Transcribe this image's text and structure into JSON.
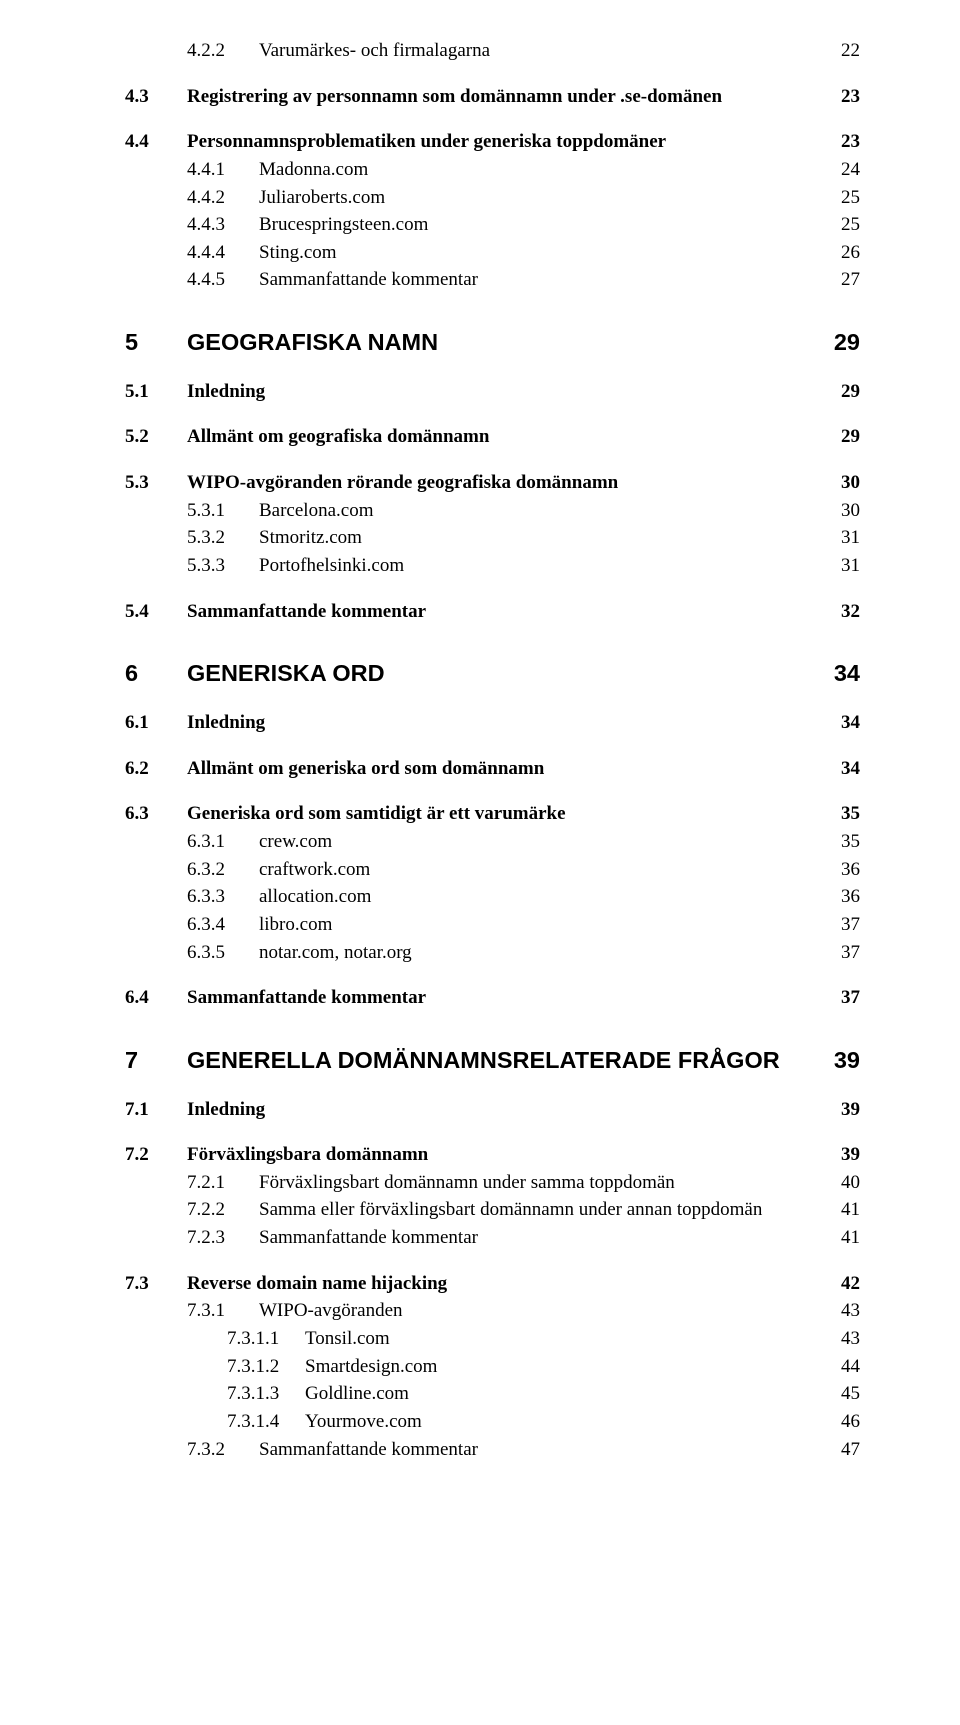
{
  "toc": [
    {
      "n": "4.2.2",
      "t": "Varumärkes- och firmalagarna",
      "p": "22",
      "lvl": 3,
      "cls": "first-block"
    },
    {
      "n": "4.3",
      "t": "Registrering av personnamn som domännamn under .se-domänen",
      "p": "23",
      "lvl": 2,
      "cls": "subheading"
    },
    {
      "n": "4.4",
      "t": "Personnamnsproblematiken under generiska toppdomäner",
      "p": "23",
      "lvl": 2,
      "cls": "subheading"
    },
    {
      "n": "4.4.1",
      "t": "Madonna.com",
      "p": "24",
      "lvl": 3,
      "cls": "tight"
    },
    {
      "n": "4.4.2",
      "t": "Juliaroberts.com",
      "p": "25",
      "lvl": 3,
      "cls": "tight"
    },
    {
      "n": "4.4.3",
      "t": "Brucespringsteen.com",
      "p": "25",
      "lvl": 3,
      "cls": "tight"
    },
    {
      "n": "4.4.4",
      "t": "Sting.com",
      "p": "26",
      "lvl": 3,
      "cls": "tight"
    },
    {
      "n": "4.4.5",
      "t": "Sammanfattande kommentar",
      "p": "27",
      "lvl": 3,
      "cls": "tight"
    },
    {
      "n": "5",
      "t": "GEOGRAFISKA NAMN",
      "p": "29",
      "lvl": 1,
      "cls": "section-heading"
    },
    {
      "n": "5.1",
      "t": "Inledning",
      "p": "29",
      "lvl": 2,
      "cls": "subheading"
    },
    {
      "n": "5.2",
      "t": "Allmänt om geografiska domännamn",
      "p": "29",
      "lvl": 2,
      "cls": "subheading"
    },
    {
      "n": "5.3",
      "t": "WIPO-avgöranden rörande geografiska domännamn",
      "p": "30",
      "lvl": 2,
      "cls": "subheading"
    },
    {
      "n": "5.3.1",
      "t": "Barcelona.com",
      "p": "30",
      "lvl": 3,
      "cls": "tight"
    },
    {
      "n": "5.3.2",
      "t": "Stmoritz.com",
      "p": "31",
      "lvl": 3,
      "cls": "tight"
    },
    {
      "n": "5.3.3",
      "t": "Portofhelsinki.com",
      "p": "31",
      "lvl": 3,
      "cls": "tight"
    },
    {
      "n": "5.4",
      "t": "Sammanfattande kommentar",
      "p": "32",
      "lvl": 2,
      "cls": "subheading"
    },
    {
      "n": "6",
      "t": "GENERISKA ORD",
      "p": "34",
      "lvl": 1,
      "cls": "section-heading"
    },
    {
      "n": "6.1",
      "t": "Inledning",
      "p": "34",
      "lvl": 2,
      "cls": "subheading"
    },
    {
      "n": "6.2",
      "t": "Allmänt om generiska ord som domännamn",
      "p": "34",
      "lvl": 2,
      "cls": "subheading"
    },
    {
      "n": "6.3",
      "t": "Generiska ord som samtidigt är ett varumärke",
      "p": "35",
      "lvl": 2,
      "cls": "subheading"
    },
    {
      "n": "6.3.1",
      "t": "crew.com",
      "p": "35",
      "lvl": 3,
      "cls": "tight"
    },
    {
      "n": "6.3.2",
      "t": "craftwork.com",
      "p": "36",
      "lvl": 3,
      "cls": "tight"
    },
    {
      "n": "6.3.3",
      "t": "allocation.com",
      "p": "36",
      "lvl": 3,
      "cls": "tight"
    },
    {
      "n": "6.3.4",
      "t": "libro.com",
      "p": "37",
      "lvl": 3,
      "cls": "tight"
    },
    {
      "n": "6.3.5",
      "t": "notar.com, notar.org",
      "p": "37",
      "lvl": 3,
      "cls": "tight"
    },
    {
      "n": "6.4",
      "t": "Sammanfattande kommentar",
      "p": "37",
      "lvl": 2,
      "cls": "subheading"
    },
    {
      "n": "7",
      "t": "GENERELLA DOMÄNNAMNSRELATERADE FRÅGOR",
      "p": "39",
      "lvl": 1,
      "cls": "section-heading"
    },
    {
      "n": "7.1",
      "t": "Inledning",
      "p": "39",
      "lvl": 2,
      "cls": "subheading"
    },
    {
      "n": "7.2",
      "t": "Förväxlingsbara domännamn",
      "p": "39",
      "lvl": 2,
      "cls": "subheading"
    },
    {
      "n": "7.2.1",
      "t": "Förväxlingsbart domännamn under samma toppdomän",
      "p": "40",
      "lvl": 3,
      "cls": "tight"
    },
    {
      "n": "7.2.2",
      "t": "Samma eller förväxlingsbart domännamn under annan toppdomän",
      "p": "41",
      "lvl": 3,
      "cls": "tight"
    },
    {
      "n": "7.2.3",
      "t": "Sammanfattande kommentar",
      "p": "41",
      "lvl": 3,
      "cls": "tight"
    },
    {
      "n": "7.3",
      "t": "Reverse domain name hijacking",
      "p": "42",
      "lvl": 2,
      "cls": "subheading"
    },
    {
      "n": "7.3.1",
      "t": "WIPO-avgöranden",
      "p": "43",
      "lvl": 3,
      "cls": "tight"
    },
    {
      "n": "7.3.1.1",
      "t": "Tonsil.com",
      "p": "43",
      "lvl": 4,
      "cls": "tight"
    },
    {
      "n": "7.3.1.2",
      "t": "Smartdesign.com",
      "p": "44",
      "lvl": 4,
      "cls": "tight"
    },
    {
      "n": "7.3.1.3",
      "t": "Goldline.com",
      "p": "45",
      "lvl": 4,
      "cls": "tight"
    },
    {
      "n": "7.3.1.4",
      "t": "Yourmove.com",
      "p": "46",
      "lvl": 4,
      "cls": "tight"
    },
    {
      "n": "7.3.2",
      "t": "Sammanfattande kommentar",
      "p": "47",
      "lvl": 3,
      "cls": "tight"
    }
  ]
}
